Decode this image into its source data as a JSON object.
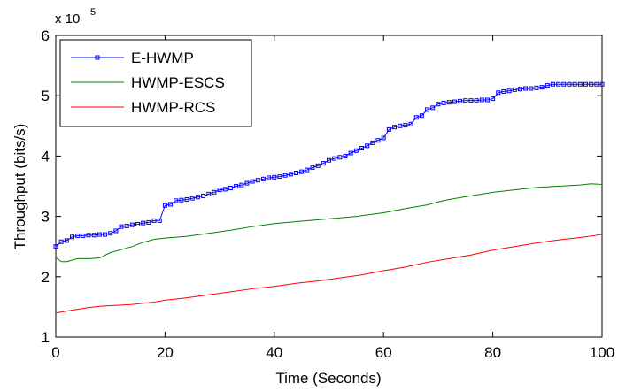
{
  "chart_data": {
    "type": "line",
    "title": "",
    "xlabel": "Time (Seconds)",
    "ylabel": "Throughput (bits/s)",
    "xlim": [
      0,
      100
    ],
    "ylim": [
      1,
      6
    ],
    "y_scale_base": "x 10",
    "y_scale_exponent": "5",
    "xticks": [
      0,
      20,
      40,
      60,
      80,
      100
    ],
    "yticks": [
      1,
      2,
      3,
      4,
      5,
      6
    ],
    "grid": false,
    "legend_position": "top-left",
    "series": [
      {
        "name": "E-HWMP",
        "color": "#0000FF",
        "marker": "square",
        "x": [
          0,
          1,
          2,
          3,
          4,
          5,
          6,
          7,
          8,
          9,
          10,
          11,
          12,
          13,
          14,
          15,
          16,
          17,
          18,
          19,
          20,
          21,
          22,
          23,
          24,
          25,
          26,
          27,
          28,
          29,
          30,
          31,
          32,
          33,
          34,
          35,
          36,
          37,
          38,
          39,
          40,
          41,
          42,
          43,
          44,
          45,
          46,
          47,
          48,
          49,
          50,
          51,
          52,
          53,
          54,
          55,
          56,
          57,
          58,
          59,
          60,
          61,
          62,
          63,
          64,
          65,
          66,
          67,
          68,
          69,
          70,
          71,
          72,
          73,
          74,
          75,
          76,
          77,
          78,
          79,
          80,
          81,
          82,
          83,
          84,
          85,
          86,
          87,
          88,
          89,
          90,
          91,
          92,
          93,
          94,
          95,
          96,
          97,
          98,
          99,
          100
        ],
        "values": [
          2.5,
          2.58,
          2.6,
          2.66,
          2.68,
          2.68,
          2.69,
          2.69,
          2.7,
          2.7,
          2.72,
          2.76,
          2.83,
          2.84,
          2.86,
          2.87,
          2.89,
          2.9,
          2.93,
          2.93,
          3.18,
          3.2,
          3.26,
          3.27,
          3.28,
          3.3,
          3.32,
          3.34,
          3.37,
          3.4,
          3.44,
          3.45,
          3.47,
          3.5,
          3.52,
          3.55,
          3.58,
          3.6,
          3.62,
          3.64,
          3.65,
          3.66,
          3.68,
          3.7,
          3.72,
          3.74,
          3.77,
          3.81,
          3.84,
          3.88,
          3.93,
          3.96,
          3.98,
          4.0,
          4.05,
          4.09,
          4.13,
          4.17,
          4.22,
          4.26,
          4.3,
          4.44,
          4.48,
          4.5,
          4.51,
          4.53,
          4.64,
          4.67,
          4.77,
          4.8,
          4.86,
          4.88,
          4.89,
          4.9,
          4.91,
          4.92,
          4.92,
          4.92,
          4.93,
          4.93,
          4.95,
          5.05,
          5.07,
          5.08,
          5.1,
          5.11,
          5.12,
          5.12,
          5.13,
          5.14,
          5.17,
          5.19,
          5.19,
          5.19,
          5.19,
          5.19,
          5.19,
          5.19,
          5.19,
          5.19,
          5.19
        ]
      },
      {
        "name": "HWMP-ESCS",
        "color": "#008000",
        "marker": "none",
        "x": [
          0,
          1,
          2,
          4,
          6,
          8,
          10,
          12,
          14,
          16,
          18,
          20,
          24,
          28,
          32,
          36,
          40,
          45,
          50,
          55,
          60,
          64,
          68,
          70,
          72,
          76,
          80,
          84,
          88,
          92,
          96,
          98,
          100
        ],
        "values": [
          2.32,
          2.25,
          2.25,
          2.3,
          2.3,
          2.31,
          2.4,
          2.45,
          2.5,
          2.57,
          2.62,
          2.64,
          2.67,
          2.72,
          2.77,
          2.83,
          2.88,
          2.92,
          2.96,
          3.0,
          3.06,
          3.13,
          3.19,
          3.24,
          3.28,
          3.34,
          3.4,
          3.44,
          3.48,
          3.5,
          3.52,
          3.54,
          3.53
        ]
      },
      {
        "name": "HWMP-RCS",
        "color": "#FF0000",
        "marker": "none",
        "x": [
          0,
          2,
          4,
          6,
          8,
          10,
          12,
          14,
          16,
          18,
          20,
          24,
          28,
          32,
          36,
          40,
          44,
          48,
          52,
          56,
          60,
          64,
          68,
          72,
          76,
          80,
          84,
          88,
          92,
          96,
          100
        ],
        "values": [
          1.4,
          1.43,
          1.46,
          1.49,
          1.51,
          1.52,
          1.53,
          1.54,
          1.56,
          1.58,
          1.61,
          1.65,
          1.7,
          1.75,
          1.8,
          1.84,
          1.89,
          1.93,
          1.98,
          2.03,
          2.1,
          2.16,
          2.24,
          2.3,
          2.36,
          2.44,
          2.5,
          2.56,
          2.61,
          2.65,
          2.7
        ]
      }
    ]
  }
}
